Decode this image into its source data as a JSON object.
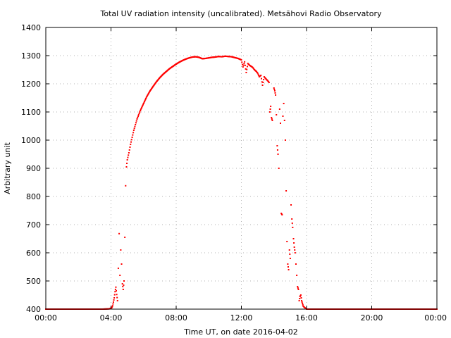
{
  "chart_data": {
    "type": "scatter",
    "title": "Total UV radiation intensity (uncalibrated). Metsähovi Radio Observatory",
    "xlabel": "Time UT, on date 2016-04-02",
    "ylabel": "Arbitrary unit",
    "xlim": [
      0,
      24
    ],
    "ylim": [
      400,
      1400
    ],
    "x_ticks": [
      {
        "value": 0,
        "label": "00:00"
      },
      {
        "value": 4,
        "label": "04:00"
      },
      {
        "value": 8,
        "label": "08:00"
      },
      {
        "value": 12,
        "label": "12:00"
      },
      {
        "value": 16,
        "label": "16:00"
      },
      {
        "value": 20,
        "label": "20:00"
      },
      {
        "value": 24,
        "label": "00:00"
      }
    ],
    "y_ticks": [
      {
        "value": 400,
        "label": "400"
      },
      {
        "value": 500,
        "label": "500"
      },
      {
        "value": 600,
        "label": "600"
      },
      {
        "value": 700,
        "label": "700"
      },
      {
        "value": 800,
        "label": "800"
      },
      {
        "value": 900,
        "label": "900"
      },
      {
        "value": 1000,
        "label": "1000"
      },
      {
        "value": 1100,
        "label": "1100"
      },
      {
        "value": 1200,
        "label": "1200"
      },
      {
        "value": 1300,
        "label": "1300"
      },
      {
        "value": 1400,
        "label": "1400"
      }
    ],
    "grid": true,
    "marker_color": "#ff0000",
    "x_unit": "hours UT",
    "series": [
      {
        "points": [
          [
            0.0,
            400
          ],
          [
            0.5,
            400
          ],
          [
            1.0,
            400
          ],
          [
            1.5,
            400
          ],
          [
            2.0,
            400
          ],
          [
            2.5,
            400
          ],
          [
            3.0,
            400
          ],
          [
            3.5,
            400
          ],
          [
            3.9,
            401
          ],
          [
            4.05,
            405
          ],
          [
            4.1,
            412
          ],
          [
            4.15,
            425
          ],
          [
            4.2,
            440
          ],
          [
            4.25,
            462
          ],
          [
            4.3,
            478
          ],
          [
            4.35,
            452
          ],
          [
            4.4,
            430
          ],
          [
            4.45,
            545
          ],
          [
            4.5,
            668
          ],
          [
            4.55,
            520
          ],
          [
            4.6,
            610
          ],
          [
            4.65,
            560
          ],
          [
            4.7,
            490
          ],
          [
            4.75,
            470
          ],
          [
            4.8,
            500
          ],
          [
            4.85,
            655
          ],
          [
            4.9,
            838
          ],
          [
            4.95,
            905
          ],
          [
            5.0,
            930
          ],
          [
            5.1,
            955
          ],
          [
            5.2,
            985
          ],
          [
            5.3,
            1010
          ],
          [
            5.4,
            1035
          ],
          [
            5.5,
            1055
          ],
          [
            5.6,
            1075
          ],
          [
            5.7,
            1090
          ],
          [
            5.8,
            1105
          ],
          [
            6.0,
            1130
          ],
          [
            6.2,
            1155
          ],
          [
            6.4,
            1175
          ],
          [
            6.6,
            1192
          ],
          [
            6.8,
            1208
          ],
          [
            7.0,
            1222
          ],
          [
            7.2,
            1234
          ],
          [
            7.4,
            1244
          ],
          [
            7.6,
            1254
          ],
          [
            7.8,
            1262
          ],
          [
            8.0,
            1270
          ],
          [
            8.2,
            1277
          ],
          [
            8.4,
            1283
          ],
          [
            8.6,
            1288
          ],
          [
            8.8,
            1292
          ],
          [
            9.0,
            1295
          ],
          [
            9.2,
            1296
          ],
          [
            9.4,
            1294
          ],
          [
            9.6,
            1289
          ],
          [
            9.8,
            1290
          ],
          [
            10.0,
            1292
          ],
          [
            10.2,
            1294
          ],
          [
            10.4,
            1295
          ],
          [
            10.6,
            1297
          ],
          [
            10.8,
            1296
          ],
          [
            11.0,
            1298
          ],
          [
            11.2,
            1297
          ],
          [
            11.4,
            1296
          ],
          [
            11.6,
            1293
          ],
          [
            11.8,
            1290
          ],
          [
            12.0,
            1285
          ],
          [
            12.1,
            1260
          ],
          [
            12.2,
            1278
          ],
          [
            12.3,
            1240
          ],
          [
            12.4,
            1272
          ],
          [
            12.5,
            1266
          ],
          [
            12.6,
            1262
          ],
          [
            12.7,
            1258
          ],
          [
            12.8,
            1250
          ],
          [
            12.9,
            1245
          ],
          [
            13.0,
            1238
          ],
          [
            13.1,
            1225
          ],
          [
            13.2,
            1230
          ],
          [
            13.3,
            1195
          ],
          [
            13.4,
            1225
          ],
          [
            13.5,
            1218
          ],
          [
            13.6,
            1212
          ],
          [
            13.7,
            1205
          ],
          [
            13.75,
            1100
          ],
          [
            13.8,
            1120
          ],
          [
            13.85,
            1080
          ],
          [
            13.9,
            1070
          ],
          [
            14.0,
            1185
          ],
          [
            14.05,
            1175
          ],
          [
            14.1,
            1160
          ],
          [
            14.15,
            1090
          ],
          [
            14.2,
            980
          ],
          [
            14.25,
            950
          ],
          [
            14.3,
            900
          ],
          [
            14.35,
            1110
          ],
          [
            14.4,
            1060
          ],
          [
            14.45,
            740
          ],
          [
            14.5,
            735
          ],
          [
            14.55,
            1085
          ],
          [
            14.6,
            1130
          ],
          [
            14.65,
            1070
          ],
          [
            14.7,
            1000
          ],
          [
            14.75,
            820
          ],
          [
            14.8,
            640
          ],
          [
            14.85,
            560
          ],
          [
            14.9,
            540
          ],
          [
            14.95,
            610
          ],
          [
            15.0,
            580
          ],
          [
            15.05,
            770
          ],
          [
            15.1,
            720
          ],
          [
            15.15,
            690
          ],
          [
            15.2,
            650
          ],
          [
            15.25,
            620
          ],
          [
            15.3,
            600
          ],
          [
            15.35,
            560
          ],
          [
            15.4,
            520
          ],
          [
            15.45,
            480
          ],
          [
            15.5,
            470
          ],
          [
            15.55,
            430
          ],
          [
            15.6,
            445
          ],
          [
            15.65,
            450
          ],
          [
            15.7,
            430
          ],
          [
            15.75,
            420
          ],
          [
            15.8,
            410
          ],
          [
            15.9,
            405
          ],
          [
            16.0,
            400
          ],
          [
            16.5,
            400
          ],
          [
            17.0,
            400
          ],
          [
            18.0,
            400
          ],
          [
            19.0,
            400
          ],
          [
            20.0,
            400
          ],
          [
            21.0,
            400
          ],
          [
            22.0,
            400
          ],
          [
            23.0,
            400
          ],
          [
            24.0,
            400
          ]
        ]
      }
    ]
  }
}
